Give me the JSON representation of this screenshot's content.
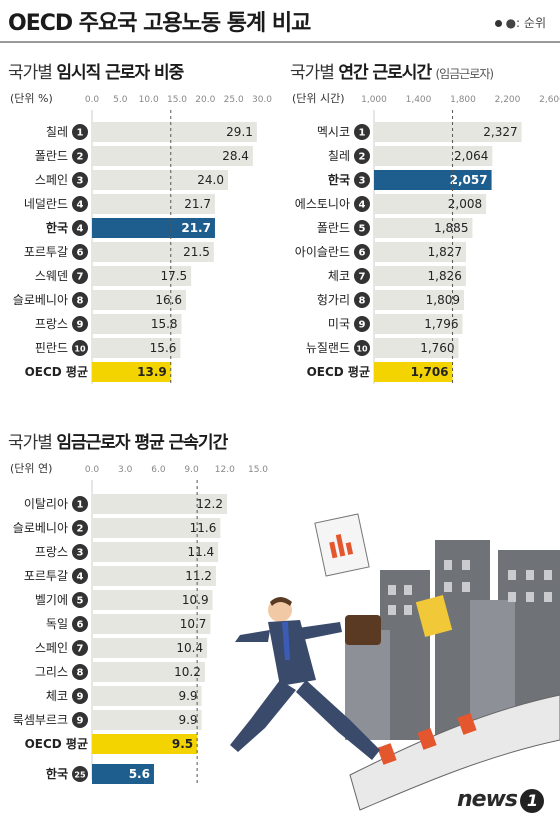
{
  "header": {
    "title": "OECD 주요국 고용노동 통계 비교",
    "legend": "●: 순위"
  },
  "logo": {
    "text": "news",
    "mark": "1"
  },
  "colors": {
    "bar": "#e6e6e1",
    "highlight_korea": "#1e5e8e",
    "highlight_avg": "#f4d400",
    "badge": "#333333",
    "text": "#222222"
  },
  "chart_data": [
    {
      "type": "bar",
      "title_normal": "국가별 ",
      "title_bold": "임시직 근로자 비중",
      "unit_label": "(단위 %)",
      "xlim": [
        0,
        30
      ],
      "ticks": [
        "0.0",
        "5.0",
        "10.0",
        "15.0",
        "20.0",
        "25.0",
        "30.0"
      ],
      "avg_line": 13.9,
      "rows": [
        {
          "label": "칠레",
          "rank": "1",
          "value": 29.1,
          "display": "29.1",
          "style": "normal"
        },
        {
          "label": "폴란드",
          "rank": "2",
          "value": 28.4,
          "display": "28.4",
          "style": "normal"
        },
        {
          "label": "스페인",
          "rank": "3",
          "value": 24.0,
          "display": "24.0",
          "style": "normal"
        },
        {
          "label": "네덜란드",
          "rank": "4",
          "value": 21.7,
          "display": "21.7",
          "style": "normal"
        },
        {
          "label": "한국",
          "rank": "4",
          "value": 21.7,
          "display": "21.7",
          "style": "korea"
        },
        {
          "label": "포르투갈",
          "rank": "6",
          "value": 21.5,
          "display": "21.5",
          "style": "normal"
        },
        {
          "label": "스웨덴",
          "rank": "7",
          "value": 17.5,
          "display": "17.5",
          "style": "normal"
        },
        {
          "label": "슬로베니아",
          "rank": "8",
          "value": 16.6,
          "display": "16.6",
          "style": "normal"
        },
        {
          "label": "프랑스",
          "rank": "9",
          "value": 15.8,
          "display": "15.8",
          "style": "normal"
        },
        {
          "label": "핀란드",
          "rank": "10",
          "value": 15.6,
          "display": "15.6",
          "style": "normal"
        },
        {
          "label": "OECD 평균",
          "rank": "",
          "value": 13.9,
          "display": "13.9",
          "style": "avg"
        }
      ]
    },
    {
      "type": "bar",
      "title_normal": "국가별 ",
      "title_bold": "연간 근로시간",
      "subtitle": "(임금근로자)",
      "unit_label": "(단위 시간)",
      "xlim": [
        1000,
        2600
      ],
      "ticks": [
        "1,000",
        "1,400",
        "1,800",
        "2,200",
        "2,600"
      ],
      "avg_line": 1706,
      "rows": [
        {
          "label": "멕시코",
          "rank": "1",
          "value": 2327,
          "display": "2,327",
          "style": "normal"
        },
        {
          "label": "칠레",
          "rank": "2",
          "value": 2064,
          "display": "2,064",
          "style": "normal"
        },
        {
          "label": "한국",
          "rank": "3",
          "value": 2057,
          "display": "2,057",
          "style": "korea"
        },
        {
          "label": "에스토니아",
          "rank": "4",
          "value": 2008,
          "display": "2,008",
          "style": "normal"
        },
        {
          "label": "폴란드",
          "rank": "5",
          "value": 1885,
          "display": "1,885",
          "style": "normal"
        },
        {
          "label": "아이슬란드",
          "rank": "6",
          "value": 1827,
          "display": "1,827",
          "style": "normal"
        },
        {
          "label": "체코",
          "rank": "7",
          "value": 1826,
          "display": "1,826",
          "style": "normal"
        },
        {
          "label": "헝가리",
          "rank": "8",
          "value": 1809,
          "display": "1,809",
          "style": "normal"
        },
        {
          "label": "미국",
          "rank": "9",
          "value": 1796,
          "display": "1,796",
          "style": "normal"
        },
        {
          "label": "뉴질랜드",
          "rank": "10",
          "value": 1760,
          "display": "1,760",
          "style": "normal"
        },
        {
          "label": "OECD 평균",
          "rank": "",
          "value": 1706,
          "display": "1,706",
          "style": "avg"
        }
      ]
    },
    {
      "type": "bar",
      "title_normal": "국가별 ",
      "title_bold": "임금근로자 평균 근속기간",
      "unit_label": "(단위 연)",
      "xlim": [
        0,
        15
      ],
      "ticks": [
        "0.0",
        "3.0",
        "6.0",
        "9.0",
        "12.0",
        "15.0"
      ],
      "avg_line": 9.5,
      "rows": [
        {
          "label": "이탈리아",
          "rank": "1",
          "value": 12.2,
          "display": "12.2",
          "style": "normal"
        },
        {
          "label": "슬로베니아",
          "rank": "2",
          "value": 11.6,
          "display": "11.6",
          "style": "normal"
        },
        {
          "label": "프랑스",
          "rank": "3",
          "value": 11.4,
          "display": "11.4",
          "style": "normal"
        },
        {
          "label": "포르투갈",
          "rank": "4",
          "value": 11.2,
          "display": "11.2",
          "style": "normal"
        },
        {
          "label": "벨기에",
          "rank": "5",
          "value": 10.9,
          "display": "10.9",
          "style": "normal"
        },
        {
          "label": "독일",
          "rank": "6",
          "value": 10.7,
          "display": "10.7",
          "style": "normal"
        },
        {
          "label": "스페인",
          "rank": "7",
          "value": 10.4,
          "display": "10.4",
          "style": "normal"
        },
        {
          "label": "그리스",
          "rank": "8",
          "value": 10.2,
          "display": "10.2",
          "style": "normal"
        },
        {
          "label": "체코",
          "rank": "9",
          "value": 9.9,
          "display": "9.9",
          "style": "normal"
        },
        {
          "label": "룩셈부르크",
          "rank": "9",
          "value": 9.9,
          "display": "9.9",
          "style": "normal"
        },
        {
          "label": "OECD 평균",
          "rank": "",
          "value": 9.5,
          "display": "9.5",
          "style": "avg"
        },
        {
          "label": "한국",
          "rank": "25",
          "value": 5.6,
          "display": "5.6",
          "style": "korea"
        }
      ]
    }
  ]
}
